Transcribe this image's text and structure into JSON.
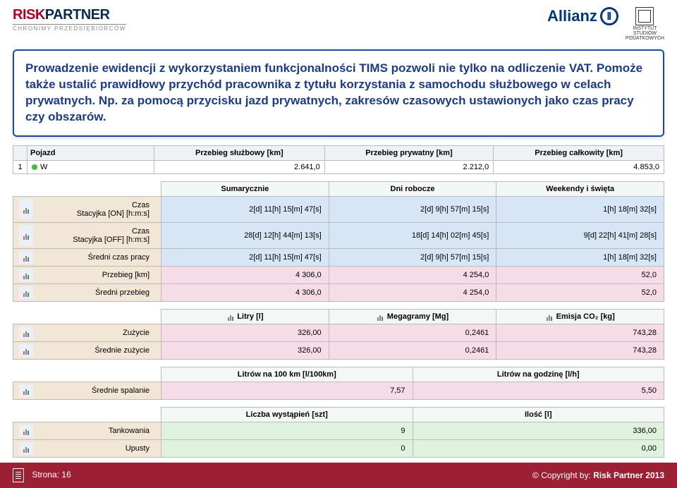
{
  "header": {
    "logo_risk": "RISK",
    "logo_partner": "PARTNER",
    "logo_sub": "CHRONIMY PRZEDSIĘBIORCÓW",
    "allianz": "Allianz",
    "isp1": "INSTYTUT",
    "isp2": "STUDIÓW",
    "isp3": "PODATKOWYCH"
  },
  "description": "Prowadzenie ewidencji z wykorzystaniem funkcjonalności TIMS pozwoli nie tylko na odliczenie VAT. Pomoże także ustalić prawidłowy przychód pracownika z tytułu korzystania z samochodu służbowego w celach prywatnych. Np. za pomocą przycisku jazd prywatnych, zakresów czasowych ustawionych jako czas pracy czy obszarów.",
  "table1": {
    "headers": [
      "Pojazd",
      "Przebieg służbowy [km]",
      "Przebieg prywatny [km]",
      "Przebieg całkowity [km]"
    ],
    "row": {
      "num": "1",
      "veh": "W",
      "v1": "2.641,0",
      "v2": "2.212,0",
      "v3": "4.853,0"
    }
  },
  "sec2": {
    "headers": [
      "Sumarycznie",
      "Dni robocze",
      "Weekendy i święta"
    ],
    "rows": [
      {
        "cls": "row-lb",
        "label": "Czas\nStacyjka [ON] [h:m:s]",
        "v": [
          "2[d] 11[h] 15[m] 47[s]",
          "2[d] 9[h] 57[m] 15[s]",
          "1[h] 18[m] 32[s]"
        ]
      },
      {
        "cls": "row-lb",
        "label": "Czas\nStacyjka [OFF] [h:m:s]",
        "v": [
          "28[d] 12[h] 44[m] 13[s]",
          "18[d] 14[h] 02[m] 45[s]",
          "9[d] 22[h] 41[m] 28[s]"
        ]
      },
      {
        "cls": "row-lb",
        "label": "Średni czas pracy",
        "v": [
          "2[d] 11[h] 15[m] 47[s]",
          "2[d] 9[h] 57[m] 15[s]",
          "1[h] 18[m] 32[s]"
        ]
      },
      {
        "cls": "row-pk",
        "label": "Przebieg [km]",
        "v": [
          "4 306,0",
          "4 254,0",
          "52,0"
        ]
      },
      {
        "cls": "row-pk",
        "label": "Średni przebieg",
        "v": [
          "4 306,0",
          "4 254,0",
          "52,0"
        ]
      }
    ]
  },
  "sec3": {
    "headers": [
      "Litry [l]",
      "Megagramy [Mg]",
      "Emisja CO₂ [kg]"
    ],
    "rows": [
      {
        "cls": "row-pk",
        "label": "Zużycie",
        "v": [
          "326,00",
          "0,2461",
          "743,28"
        ]
      },
      {
        "cls": "row-pk",
        "label": "Średnie zużycie",
        "v": [
          "326,00",
          "0,2461",
          "743,28"
        ]
      }
    ]
  },
  "sec4": {
    "headers": [
      "Litrów na 100 km [l/100km]",
      "Litrów na godzinę [l/h]"
    ],
    "rows": [
      {
        "cls": "row-pk",
        "label": "Średnie spalanie",
        "v": [
          "7,57",
          "5,50"
        ]
      }
    ]
  },
  "sec5": {
    "headers": [
      "Liczba wystąpień [szt]",
      "Ilość [l]"
    ],
    "rows": [
      {
        "cls": "row-gn",
        "label": "Tankowania",
        "v": [
          "9",
          "336,00"
        ]
      },
      {
        "cls": "row-gn",
        "label": "Upusty",
        "v": [
          "0",
          "0,00"
        ]
      }
    ]
  },
  "footer": {
    "page_label": "Strona:",
    "page_num": "16",
    "copyright": "© Copyright by:",
    "company": "Risk Partner 2013"
  }
}
